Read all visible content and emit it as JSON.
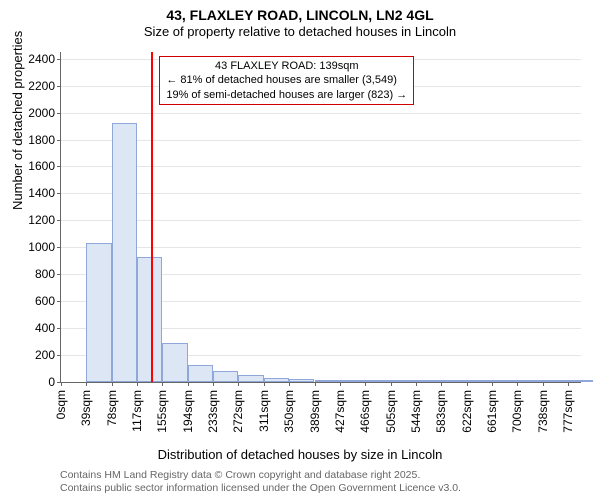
{
  "title": "43, FLAXLEY ROAD, LINCOLN, LN2 4GL",
  "subtitle": "Size of property relative to detached houses in Lincoln",
  "y_axis": {
    "label": "Number of detached properties",
    "ticks": [
      0,
      200,
      400,
      600,
      800,
      1000,
      1200,
      1400,
      1600,
      1800,
      2000,
      2200,
      2400
    ],
    "min": 0,
    "max": 2450
  },
  "x_axis": {
    "label": "Distribution of detached houses by size in Lincoln",
    "tick_labels": [
      "0sqm",
      "39sqm",
      "78sqm",
      "117sqm",
      "155sqm",
      "194sqm",
      "233sqm",
      "272sqm",
      "311sqm",
      "350sqm",
      "389sqm",
      "427sqm",
      "466sqm",
      "505sqm",
      "544sqm",
      "583sqm",
      "622sqm",
      "661sqm",
      "700sqm",
      "738sqm",
      "777sqm"
    ],
    "min": 0,
    "max": 800
  },
  "histogram": {
    "bin_width": 39,
    "bar_fill": "#dde6f5",
    "bar_border": "#8fa8d9",
    "values": [
      0,
      1030,
      1920,
      930,
      290,
      130,
      80,
      50,
      30,
      20,
      15,
      10,
      8,
      6,
      5,
      4,
      3,
      3,
      2,
      2,
      1
    ]
  },
  "marker": {
    "value": 139,
    "color": "#ff0000",
    "label": "43 FLAXLEY ROAD: 139sqm",
    "note_line1": "← 81% of detached houses are smaller (3,549)",
    "note_line2": "19% of semi-detached houses are larger (823) →",
    "box_border": "#cc0000"
  },
  "footer": {
    "line1": "Contains HM Land Registry data © Crown copyright and database right 2025.",
    "line2": "Contains public sector information licensed under the Open Government Licence v3.0."
  }
}
